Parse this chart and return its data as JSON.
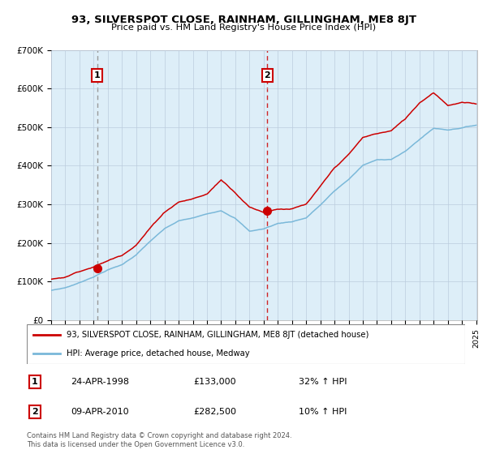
{
  "title": "93, SILVERSPOT CLOSE, RAINHAM, GILLINGHAM, ME8 8JT",
  "subtitle": "Price paid vs. HM Land Registry's House Price Index (HPI)",
  "legend_line1": "93, SILVERSPOT CLOSE, RAINHAM, GILLINGHAM, ME8 8JT (detached house)",
  "legend_line2": "HPI: Average price, detached house, Medway",
  "annotation1_label": "1",
  "annotation1_date": "24-APR-1998",
  "annotation1_price": "£133,000",
  "annotation1_hpi": "32% ↑ HPI",
  "annotation2_label": "2",
  "annotation2_date": "09-APR-2010",
  "annotation2_price": "£282,500",
  "annotation2_hpi": "10% ↑ HPI",
  "footer": "Contains HM Land Registry data © Crown copyright and database right 2024.\nThis data is licensed under the Open Government Licence v3.0.",
  "red_color": "#cc0000",
  "blue_color": "#7ab8d9",
  "bg_color": "#ddeef8",
  "grid_color": "#bbccdd",
  "dashed_line1_color": "#999999",
  "dashed_line2_color": "#cc0000",
  "ylim": [
    0,
    700000
  ],
  "yticks": [
    0,
    100000,
    200000,
    300000,
    400000,
    500000,
    600000,
    700000
  ],
  "ytick_labels": [
    "£0",
    "£100K",
    "£200K",
    "£300K",
    "£400K",
    "£500K",
    "£600K",
    "£700K"
  ],
  "sale1_year": 1998.25,
  "sale2_year": 2010.25,
  "sale1_price": 133000,
  "sale2_price": 282500
}
